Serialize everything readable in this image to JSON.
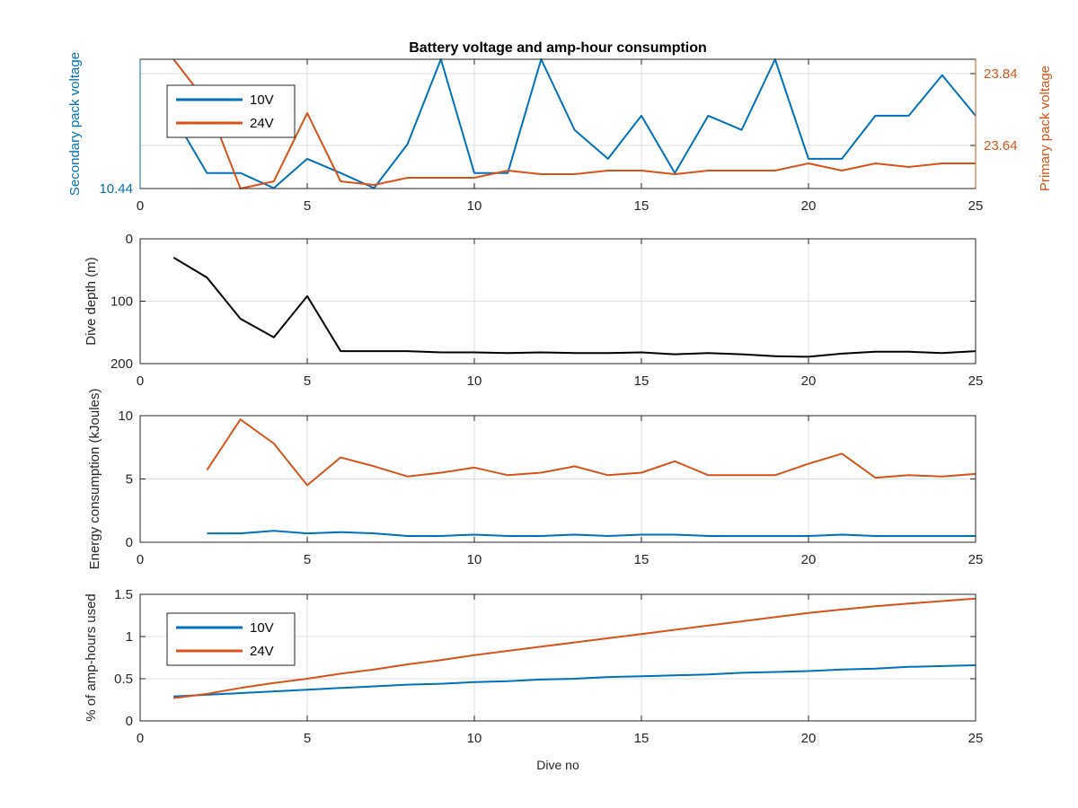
{
  "figure": {
    "title": "Battery voltage and amp-hour consumption",
    "xlabel": "Dive no",
    "series_colors": {
      "10V": "#0072BD",
      "24V": "#D95319",
      "depth": "#000000"
    }
  },
  "chart_data": [
    {
      "type": "line",
      "title": "Battery voltage and amp-hour consumption",
      "ylabel": "Secondary pack voltage",
      "ylabel_right": "Primary pack voltage",
      "xlim": [
        0,
        25
      ],
      "xticks": [
        0,
        5,
        10,
        15,
        20,
        25
      ],
      "ylim_left": [
        10.44,
        10.47
      ],
      "yticks_left": [
        10.44
      ],
      "yticklabels_left": [
        "10.44"
      ],
      "ylim_right": [
        23.52,
        23.88
      ],
      "yticks_right": [
        23.64,
        23.84
      ],
      "yticklabels_right": [
        "23.64",
        "23.84"
      ],
      "grid": true,
      "legend": {
        "entries": [
          "10V",
          "24V"
        ],
        "placement": "top-left"
      },
      "series": [
        {
          "name": "10V",
          "axis": "left",
          "color": "#0072BD",
          "x": [
            1,
            2,
            3,
            4,
            5,
            6,
            7,
            8,
            9,
            10,
            11,
            12,
            13,
            14,
            15,
            16,
            17,
            18,
            19,
            20,
            21,
            22,
            23,
            24,
            25
          ],
          "y": [
            10.4568,
            10.4436,
            10.4436,
            10.4401,
            10.4469,
            10.4436,
            10.4401,
            10.4503,
            10.47,
            10.4436,
            10.4436,
            10.47,
            10.4536,
            10.4469,
            10.4569,
            10.4436,
            10.4569,
            10.4536,
            10.47,
            10.4469,
            10.4469,
            10.4569,
            10.4569,
            10.4663,
            10.4569
          ]
        },
        {
          "name": "24V",
          "axis": "right",
          "color": "#D95319",
          "x": [
            1,
            2,
            3,
            4,
            5,
            6,
            7,
            8,
            9,
            10,
            11,
            12,
            13,
            14,
            15,
            16,
            17,
            18,
            19,
            20,
            21,
            22,
            23,
            24,
            25
          ],
          "y": [
            23.88,
            23.76,
            23.52,
            23.54,
            23.73,
            23.54,
            23.53,
            23.55,
            23.55,
            23.55,
            23.57,
            23.56,
            23.56,
            23.57,
            23.57,
            23.56,
            23.57,
            23.57,
            23.57,
            23.59,
            23.57,
            23.59,
            23.58,
            23.59,
            23.59
          ]
        }
      ]
    },
    {
      "type": "line",
      "ylabel": "Dive depth (m)",
      "xlim": [
        0,
        25
      ],
      "xticks": [
        0,
        5,
        10,
        15,
        20,
        25
      ],
      "ylim": [
        0,
        200
      ],
      "y_reversed": true,
      "yticks": [
        0,
        100,
        200
      ],
      "grid": true,
      "series": [
        {
          "color": "#000000",
          "x": [
            1,
            2,
            3,
            4,
            5,
            6,
            7,
            8,
            9,
            10,
            11,
            12,
            13,
            14,
            15,
            16,
            17,
            18,
            19,
            20,
            21,
            22,
            23,
            24,
            25
          ],
          "y": [
            30,
            62,
            128,
            158,
            92,
            180,
            180,
            180,
            182,
            182,
            183,
            182,
            183,
            183,
            182,
            185,
            183,
            185,
            188,
            189,
            184,
            181,
            181,
            183,
            180
          ]
        }
      ]
    },
    {
      "type": "line",
      "ylabel": "Energy consumption (kJoules)",
      "xlim": [
        0,
        25
      ],
      "xticks": [
        0,
        5,
        10,
        15,
        20,
        25
      ],
      "ylim": [
        0,
        10
      ],
      "yticks": [
        0,
        5,
        10
      ],
      "grid": true,
      "series": [
        {
          "color": "#D95319",
          "x": [
            2,
            3,
            4,
            5,
            6,
            7,
            8,
            9,
            10,
            11,
            12,
            13,
            14,
            15,
            16,
            17,
            18,
            19,
            20,
            21,
            22,
            23,
            24,
            25
          ],
          "y": [
            5.7,
            9.7,
            7.8,
            4.5,
            6.7,
            6.0,
            5.2,
            5.5,
            5.9,
            5.3,
            5.5,
            6.0,
            5.3,
            5.5,
            6.4,
            5.3,
            5.3,
            5.3,
            6.2,
            7.0,
            5.1,
            5.3,
            5.2,
            5.4
          ]
        },
        {
          "color": "#0072BD",
          "x": [
            2,
            3,
            4,
            5,
            6,
            7,
            8,
            9,
            10,
            11,
            12,
            13,
            14,
            15,
            16,
            17,
            18,
            19,
            20,
            21,
            22,
            23,
            24,
            25
          ],
          "y": [
            0.7,
            0.7,
            0.9,
            0.7,
            0.8,
            0.7,
            0.5,
            0.5,
            0.6,
            0.5,
            0.5,
            0.6,
            0.5,
            0.6,
            0.6,
            0.5,
            0.5,
            0.5,
            0.5,
            0.6,
            0.5,
            0.5,
            0.5,
            0.5
          ]
        }
      ]
    },
    {
      "type": "line",
      "ylabel": "% of amp-hours used",
      "xlabel": "Dive no",
      "xlim": [
        0,
        25
      ],
      "xticks": [
        0,
        5,
        10,
        15,
        20,
        25
      ],
      "ylim": [
        0,
        1.5
      ],
      "yticks": [
        0,
        0.5,
        1,
        1.5
      ],
      "grid": true,
      "legend": {
        "entries": [
          "10V",
          "24V"
        ],
        "placement": "bottom-left"
      },
      "series": [
        {
          "name": "10V",
          "color": "#0072BD",
          "x": [
            1,
            2,
            3,
            4,
            5,
            6,
            7,
            8,
            9,
            10,
            11,
            12,
            13,
            14,
            15,
            16,
            17,
            18,
            19,
            20,
            21,
            22,
            23,
            24,
            25
          ],
          "y": [
            0.29,
            0.31,
            0.33,
            0.35,
            0.37,
            0.39,
            0.41,
            0.43,
            0.44,
            0.46,
            0.47,
            0.49,
            0.5,
            0.52,
            0.53,
            0.54,
            0.55,
            0.57,
            0.58,
            0.59,
            0.61,
            0.62,
            0.64,
            0.65,
            0.66
          ]
        },
        {
          "name": "24V",
          "color": "#D95319",
          "x": [
            1,
            2,
            3,
            4,
            5,
            6,
            7,
            8,
            9,
            10,
            11,
            12,
            13,
            14,
            15,
            16,
            17,
            18,
            19,
            20,
            21,
            22,
            23,
            24,
            25
          ],
          "y": [
            0.27,
            0.32,
            0.39,
            0.45,
            0.5,
            0.56,
            0.61,
            0.67,
            0.72,
            0.78,
            0.83,
            0.88,
            0.93,
            0.98,
            1.03,
            1.08,
            1.13,
            1.18,
            1.23,
            1.28,
            1.32,
            1.36,
            1.39,
            1.42,
            1.45
          ]
        }
      ]
    }
  ]
}
